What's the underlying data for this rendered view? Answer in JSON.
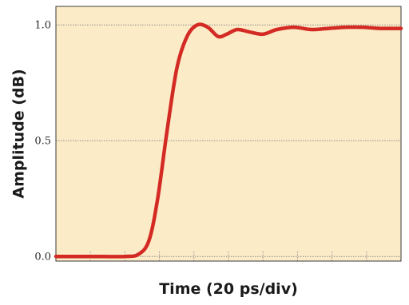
{
  "colors": {
    "plot_background": "#fcebc7",
    "line": "#d42a24",
    "gridline": "#8c8c8c",
    "frame": "#3a3a3a"
  },
  "chart_data": {
    "type": "line",
    "xlabel": "Time (20 ps/div)",
    "ylabel": "Amplitude (dB)",
    "ylim": [
      -0.02,
      1.08
    ],
    "xlim": [
      0,
      10
    ],
    "x_divisions": 10,
    "yticks": [
      0.0,
      0.5,
      1.0
    ],
    "ytick_labels": [
      "0.0",
      "0.5",
      "1.0"
    ],
    "xtick_labels_shown": false,
    "grid": "horizontal dotted at y ticks; small vertical dotted tick marks along bottom",
    "legend": "none",
    "series": [
      {
        "x": [
          0.0,
          1.0,
          2.0,
          2.4,
          2.7,
          2.95,
          3.2,
          3.5,
          3.8,
          4.1,
          4.4,
          4.7,
          4.95,
          5.25,
          5.6,
          6.0,
          6.4,
          6.9,
          7.4,
          7.9,
          8.4,
          8.9,
          9.4,
          10.0
        ],
        "y": [
          0.0,
          0.0,
          0.0,
          0.01,
          0.07,
          0.25,
          0.52,
          0.81,
          0.95,
          1.0,
          0.99,
          0.95,
          0.96,
          0.98,
          0.97,
          0.96,
          0.98,
          0.99,
          0.98,
          0.985,
          0.99,
          0.99,
          0.985,
          0.985
        ]
      }
    ]
  }
}
